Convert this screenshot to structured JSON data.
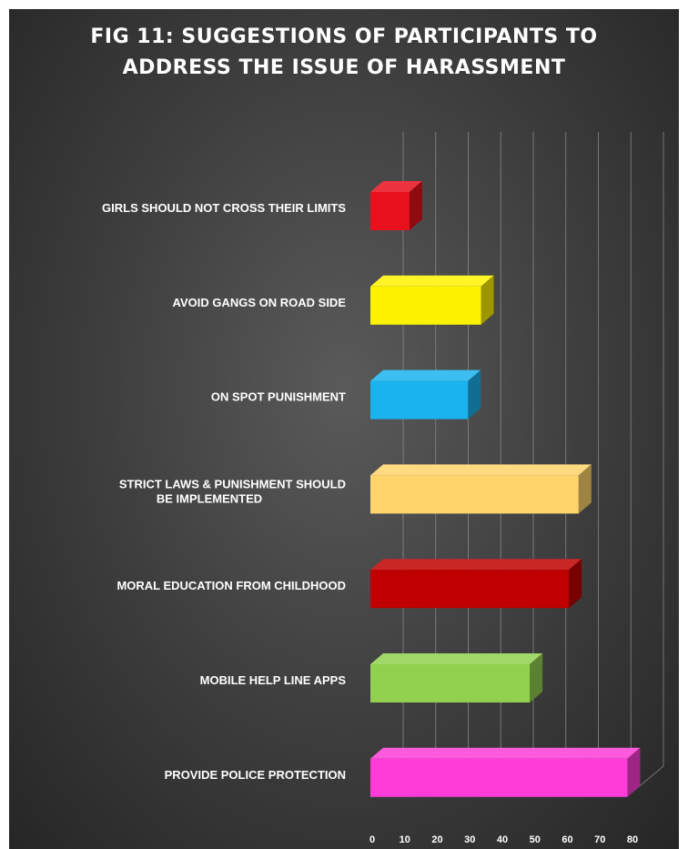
{
  "chart_data": {
    "type": "bar",
    "orientation": "horizontal",
    "style": "3d",
    "title_lines": [
      "FIG 11: SUGGESTIONS OF PARTICIPANTS TO",
      "ADDRESS THE ISSUE OF HARASSMENT"
    ],
    "categories": [
      [
        "GIRLS SHOULD NOT CROSS THEIR LIMITS"
      ],
      [
        "AVOID GANGS ON ROAD SIDE"
      ],
      [
        "ON SPOT PUNISHMENT"
      ],
      [
        "STRICT LAWS & PUNISHMENT SHOULD",
        "BE IMPLEMENTED"
      ],
      [
        "MORAL EDUCATION FROM CHILDHOOD"
      ],
      [
        "MOBILE HELP LINE APPS"
      ],
      [
        "PROVIDE POLICE PROTECTION"
      ]
    ],
    "values": [
      12,
      34,
      30,
      64,
      61,
      49,
      79
    ],
    "colors": [
      "#e8101c",
      "#fff200",
      "#1ab2ef",
      "#ffd46a",
      "#c00000",
      "#92d050",
      "#ff3cd8"
    ],
    "xticks": [
      0,
      10,
      20,
      30,
      40,
      50,
      60,
      70,
      80
    ],
    "xlim": [
      0,
      80
    ],
    "grid": true,
    "legend": "none"
  }
}
